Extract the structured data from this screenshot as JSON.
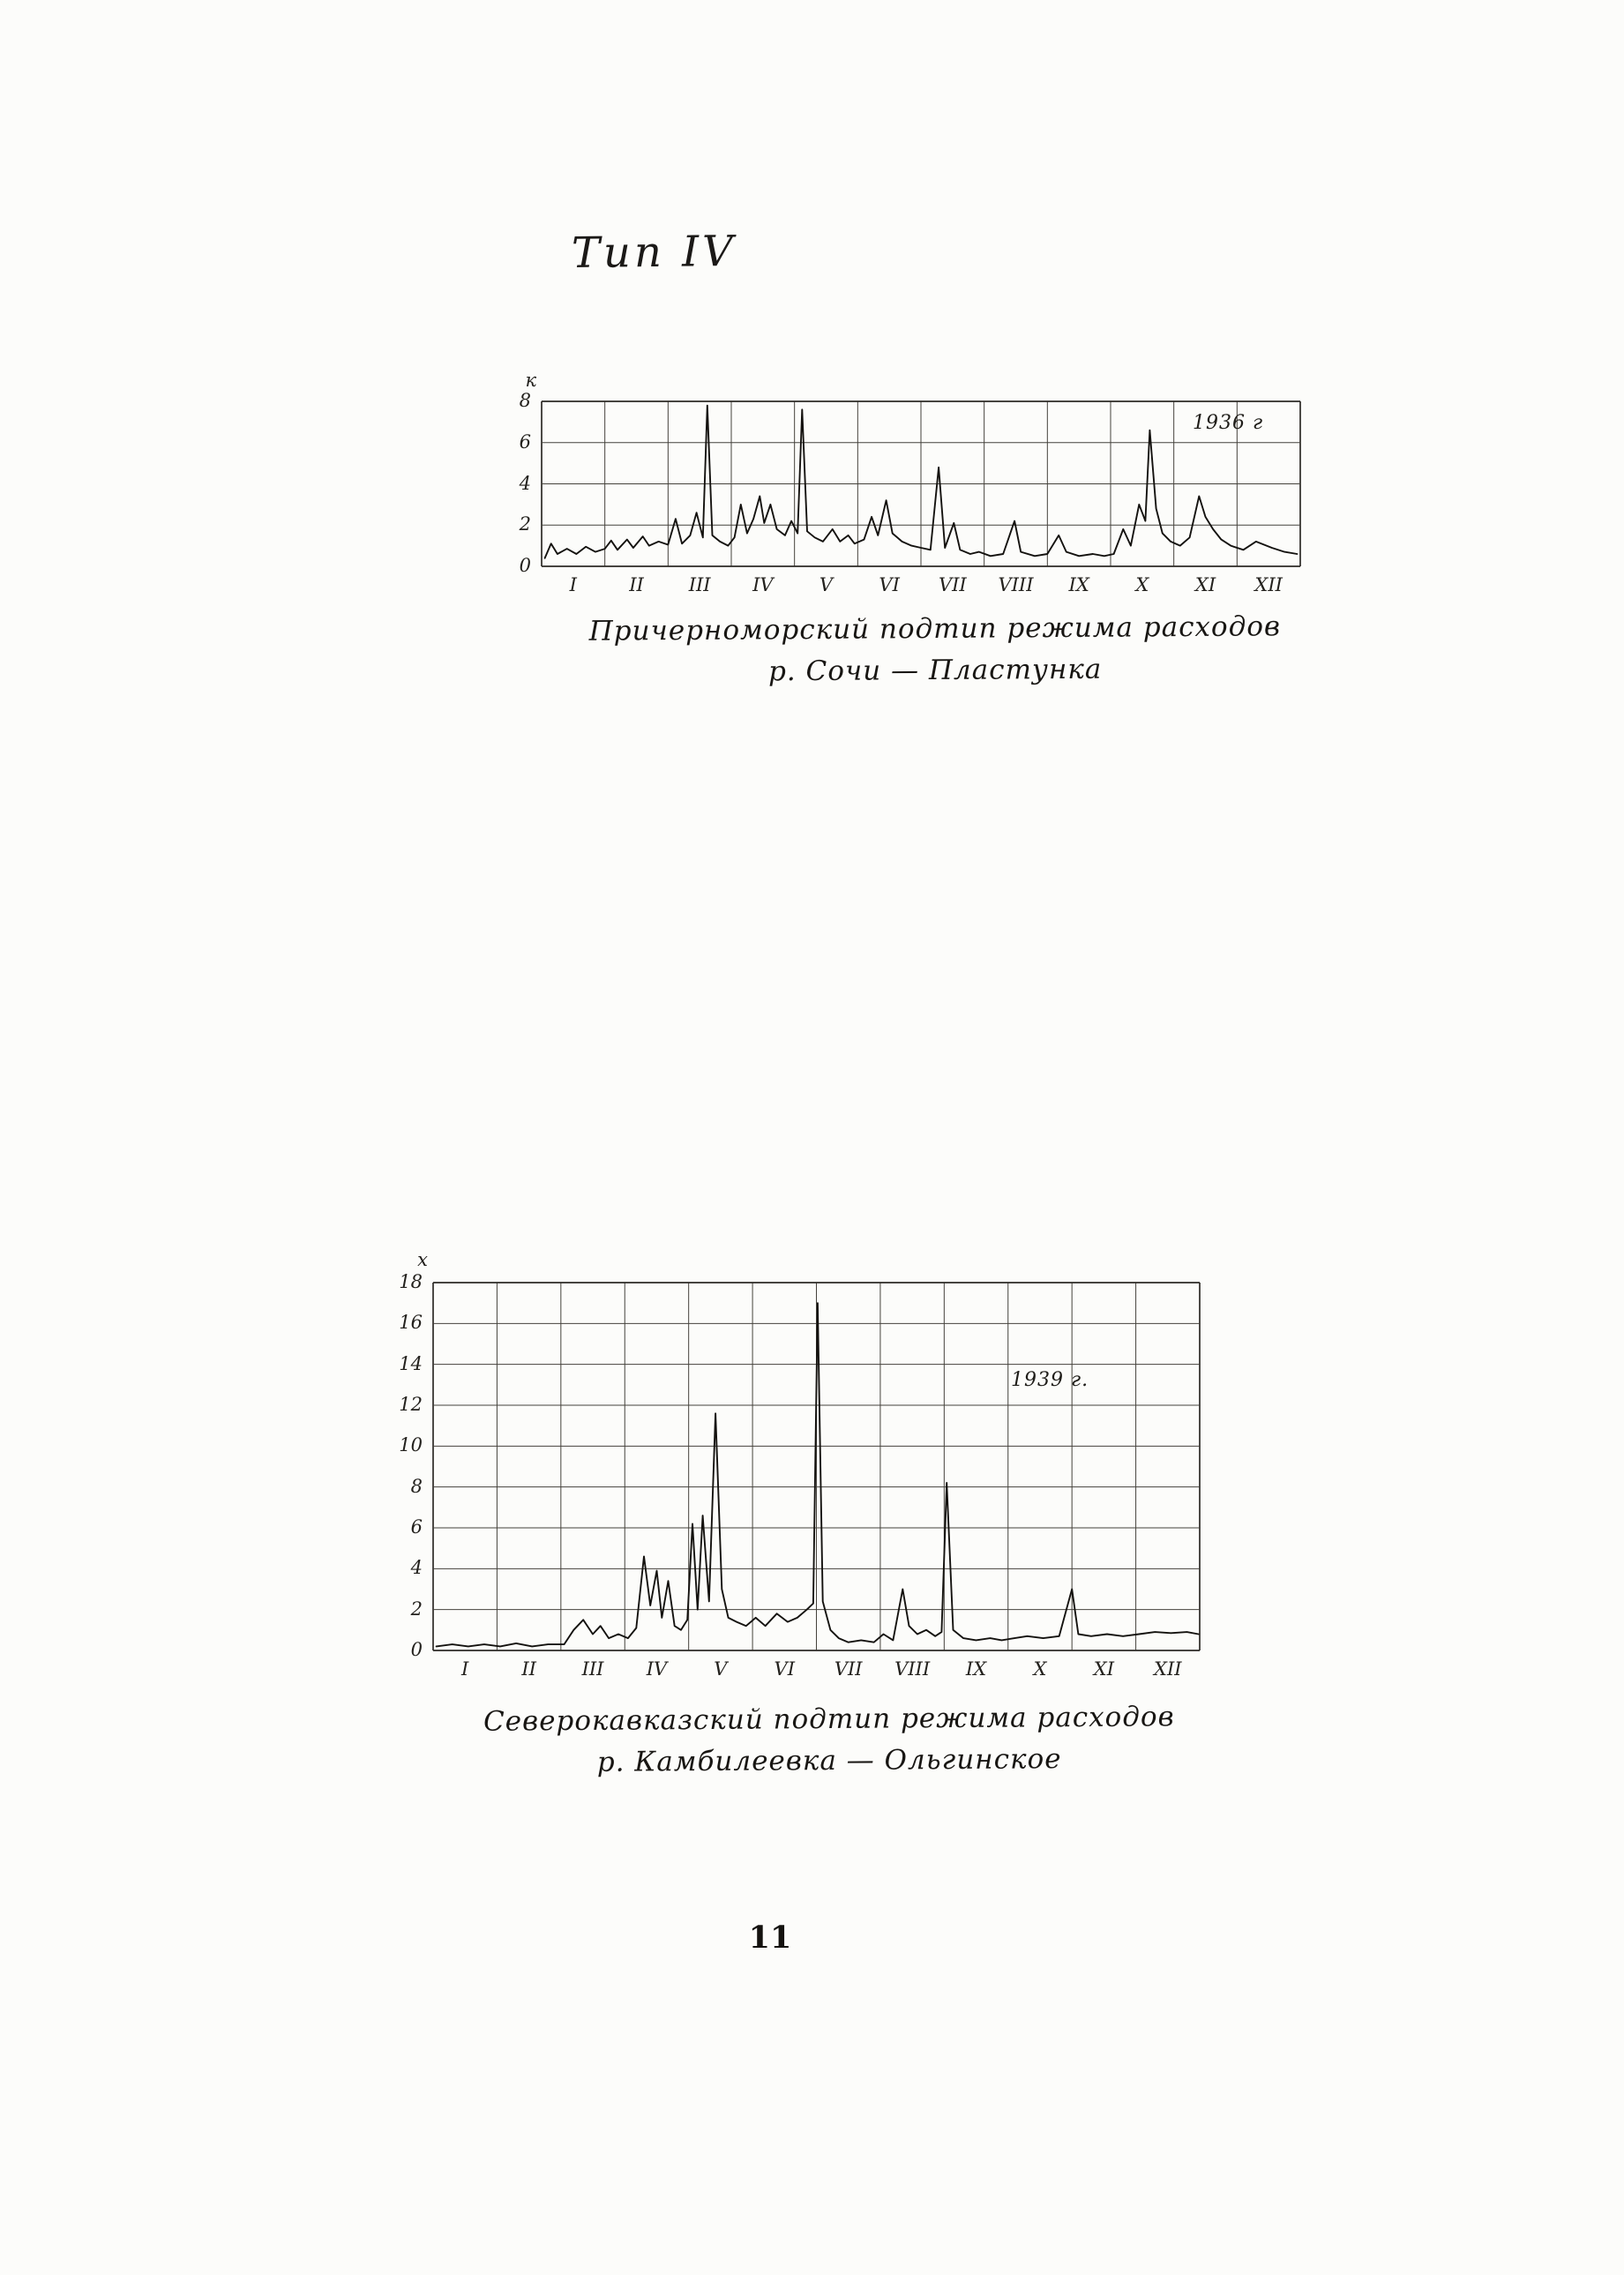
{
  "page": {
    "title": "Тип IV",
    "page_number": "11"
  },
  "chart_data": [
    {
      "type": "line",
      "title": "Причерноморский подтип режима расходов",
      "subtitle": "р. Сочи — Пластунка",
      "ylabel": "к",
      "xlabel": "",
      "year_label": "1936 г",
      "legend": null,
      "grid": true,
      "x_tick_labels": [
        "I",
        "II",
        "III",
        "IV",
        "V",
        "VI",
        "VII",
        "VIII",
        "IX",
        "X",
        "XI",
        "XII"
      ],
      "y_ticks": [
        0,
        2,
        4,
        6,
        8
      ],
      "ylim": [
        0,
        8
      ],
      "x_months": 12,
      "points": [
        [
          0.05,
          0.4
        ],
        [
          0.15,
          1.1
        ],
        [
          0.25,
          0.6
        ],
        [
          0.4,
          0.85
        ],
        [
          0.55,
          0.6
        ],
        [
          0.7,
          0.95
        ],
        [
          0.85,
          0.7
        ],
        [
          1.0,
          0.85
        ],
        [
          1.1,
          1.25
        ],
        [
          1.2,
          0.8
        ],
        [
          1.35,
          1.3
        ],
        [
          1.45,
          0.9
        ],
        [
          1.6,
          1.45
        ],
        [
          1.7,
          1.0
        ],
        [
          1.85,
          1.2
        ],
        [
          2.0,
          1.05
        ],
        [
          2.12,
          2.3
        ],
        [
          2.22,
          1.1
        ],
        [
          2.35,
          1.5
        ],
        [
          2.45,
          2.6
        ],
        [
          2.55,
          1.4
        ],
        [
          2.62,
          7.8
        ],
        [
          2.7,
          1.5
        ],
        [
          2.82,
          1.2
        ],
        [
          2.95,
          1.0
        ],
        [
          3.05,
          1.4
        ],
        [
          3.15,
          3.0
        ],
        [
          3.25,
          1.6
        ],
        [
          3.35,
          2.3
        ],
        [
          3.45,
          3.4
        ],
        [
          3.52,
          2.1
        ],
        [
          3.62,
          3.0
        ],
        [
          3.72,
          1.8
        ],
        [
          3.85,
          1.5
        ],
        [
          3.95,
          2.2
        ],
        [
          4.05,
          1.6
        ],
        [
          4.12,
          7.6
        ],
        [
          4.2,
          1.7
        ],
        [
          4.32,
          1.4
        ],
        [
          4.45,
          1.2
        ],
        [
          4.6,
          1.8
        ],
        [
          4.72,
          1.2
        ],
        [
          4.85,
          1.5
        ],
        [
          4.95,
          1.1
        ],
        [
          5.1,
          1.3
        ],
        [
          5.22,
          2.4
        ],
        [
          5.32,
          1.5
        ],
        [
          5.45,
          3.2
        ],
        [
          5.55,
          1.6
        ],
        [
          5.7,
          1.2
        ],
        [
          5.85,
          1.0
        ],
        [
          6.0,
          0.9
        ],
        [
          6.15,
          0.8
        ],
        [
          6.28,
          4.8
        ],
        [
          6.38,
          0.9
        ],
        [
          6.52,
          2.1
        ],
        [
          6.62,
          0.8
        ],
        [
          6.78,
          0.6
        ],
        [
          6.92,
          0.7
        ],
        [
          7.1,
          0.5
        ],
        [
          7.3,
          0.6
        ],
        [
          7.48,
          2.2
        ],
        [
          7.58,
          0.7
        ],
        [
          7.8,
          0.5
        ],
        [
          8.0,
          0.6
        ],
        [
          8.18,
          1.5
        ],
        [
          8.3,
          0.7
        ],
        [
          8.5,
          0.5
        ],
        [
          8.72,
          0.6
        ],
        [
          8.9,
          0.5
        ],
        [
          9.05,
          0.6
        ],
        [
          9.2,
          1.8
        ],
        [
          9.32,
          1.0
        ],
        [
          9.45,
          3.0
        ],
        [
          9.55,
          2.2
        ],
        [
          9.62,
          6.6
        ],
        [
          9.72,
          2.8
        ],
        [
          9.82,
          1.6
        ],
        [
          9.95,
          1.2
        ],
        [
          10.1,
          1.0
        ],
        [
          10.25,
          1.4
        ],
        [
          10.4,
          3.4
        ],
        [
          10.5,
          2.4
        ],
        [
          10.62,
          1.8
        ],
        [
          10.75,
          1.3
        ],
        [
          10.9,
          1.0
        ],
        [
          11.1,
          0.8
        ],
        [
          11.3,
          1.2
        ],
        [
          11.55,
          0.9
        ],
        [
          11.75,
          0.7
        ],
        [
          11.95,
          0.6
        ]
      ]
    },
    {
      "type": "line",
      "title": "Северокавказский подтип режима расходов",
      "subtitle": "р. Камбилеевка — Ольгинское",
      "ylabel": "х",
      "xlabel": "",
      "year_label": "1939 г.",
      "legend": null,
      "grid": true,
      "x_tick_labels": [
        "I",
        "II",
        "III",
        "IV",
        "V",
        "VI",
        "VII",
        "VIII",
        "IX",
        "X",
        "XI",
        "XII"
      ],
      "y_ticks": [
        0,
        2,
        4,
        6,
        8,
        10,
        12,
        14,
        16,
        18
      ],
      "ylim": [
        0,
        18
      ],
      "x_months": 12,
      "points": [
        [
          0.05,
          0.2
        ],
        [
          0.3,
          0.3
        ],
        [
          0.55,
          0.2
        ],
        [
          0.8,
          0.3
        ],
        [
          1.05,
          0.2
        ],
        [
          1.3,
          0.35
        ],
        [
          1.55,
          0.2
        ],
        [
          1.8,
          0.3
        ],
        [
          2.05,
          0.3
        ],
        [
          2.2,
          1.0
        ],
        [
          2.35,
          1.5
        ],
        [
          2.5,
          0.8
        ],
        [
          2.62,
          1.2
        ],
        [
          2.75,
          0.6
        ],
        [
          2.9,
          0.8
        ],
        [
          3.05,
          0.6
        ],
        [
          3.18,
          1.1
        ],
        [
          3.3,
          4.6
        ],
        [
          3.4,
          2.2
        ],
        [
          3.5,
          3.9
        ],
        [
          3.58,
          1.6
        ],
        [
          3.68,
          3.4
        ],
        [
          3.78,
          1.2
        ],
        [
          3.88,
          1.0
        ],
        [
          3.98,
          1.5
        ],
        [
          4.06,
          6.2
        ],
        [
          4.14,
          2.0
        ],
        [
          4.22,
          6.6
        ],
        [
          4.32,
          2.4
        ],
        [
          4.42,
          11.6
        ],
        [
          4.52,
          3.0
        ],
        [
          4.62,
          1.6
        ],
        [
          4.75,
          1.4
        ],
        [
          4.9,
          1.2
        ],
        [
          5.05,
          1.6
        ],
        [
          5.2,
          1.2
        ],
        [
          5.38,
          1.8
        ],
        [
          5.55,
          1.4
        ],
        [
          5.7,
          1.6
        ],
        [
          5.85,
          2.0
        ],
        [
          5.95,
          2.3
        ],
        [
          6.02,
          17.0
        ],
        [
          6.1,
          2.4
        ],
        [
          6.22,
          1.0
        ],
        [
          6.35,
          0.6
        ],
        [
          6.5,
          0.4
        ],
        [
          6.7,
          0.5
        ],
        [
          6.9,
          0.4
        ],
        [
          7.05,
          0.8
        ],
        [
          7.2,
          0.5
        ],
        [
          7.35,
          3.0
        ],
        [
          7.45,
          1.2
        ],
        [
          7.58,
          0.8
        ],
        [
          7.72,
          1.0
        ],
        [
          7.86,
          0.7
        ],
        [
          7.96,
          0.9
        ],
        [
          8.04,
          8.2
        ],
        [
          8.14,
          1.0
        ],
        [
          8.3,
          0.6
        ],
        [
          8.5,
          0.5
        ],
        [
          8.72,
          0.6
        ],
        [
          8.9,
          0.5
        ],
        [
          9.1,
          0.6
        ],
        [
          9.3,
          0.7
        ],
        [
          9.55,
          0.6
        ],
        [
          9.8,
          0.7
        ],
        [
          10.0,
          3.0
        ],
        [
          10.1,
          0.8
        ],
        [
          10.3,
          0.7
        ],
        [
          10.55,
          0.8
        ],
        [
          10.8,
          0.7
        ],
        [
          11.05,
          0.8
        ],
        [
          11.3,
          0.9
        ],
        [
          11.55,
          0.85
        ],
        [
          11.8,
          0.9
        ],
        [
          11.98,
          0.8
        ]
      ]
    }
  ]
}
